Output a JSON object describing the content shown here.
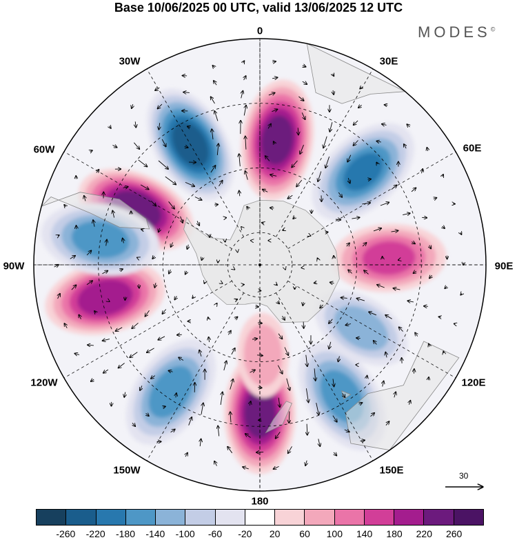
{
  "title": "Base 10/06/2025 00 UTC, valid 13/06/2025 12 UTC",
  "brand": "MODES",
  "brand_mark": "©",
  "longitude_labels": [
    "0",
    "30E",
    "60E",
    "90E",
    "120E",
    "150E",
    "180",
    "150W",
    "120W",
    "90W",
    "60W",
    "30W"
  ],
  "reference_vector_label": "30",
  "colorbar": {
    "labels": [
      "-260",
      "-220",
      "-180",
      "-140",
      "-100",
      "-60",
      "-20",
      "20",
      "60",
      "100",
      "140",
      "180",
      "220",
      "260"
    ],
    "colors": [
      "#17405e",
      "#1a5d8c",
      "#2878ae",
      "#4e97c6",
      "#8bb3d8",
      "#c3cde6",
      "#e3e3f0",
      "#ffffff",
      "#f8d3d7",
      "#f3a8bb",
      "#ea74a8",
      "#d23e98",
      "#a41d8e",
      "#6c1a7d",
      "#4b1364"
    ]
  },
  "anomaly_centers": [
    {
      "lon": -66,
      "lat": -48,
      "value": 255
    },
    {
      "lon": -30,
      "lat": -47,
      "value": -240
    },
    {
      "lon": 8,
      "lat": -51,
      "value": 240
    },
    {
      "lon": 48,
      "lat": -47,
      "value": -180
    },
    {
      "lon": 87,
      "lat": -50,
      "value": 150
    },
    {
      "lon": -102,
      "lat": -41,
      "value": 210
    },
    {
      "lon": -81,
      "lat": -40,
      "value": -160
    },
    {
      "lon": -145,
      "lat": -42,
      "value": -160
    },
    {
      "lon": 180,
      "lat": -44,
      "value": 240
    },
    {
      "lon": 148,
      "lat": -42,
      "value": -160
    },
    {
      "lon": 122,
      "lat": -53,
      "value": -120
    },
    {
      "lon": 178,
      "lat": -62,
      "value": 80
    }
  ]
}
